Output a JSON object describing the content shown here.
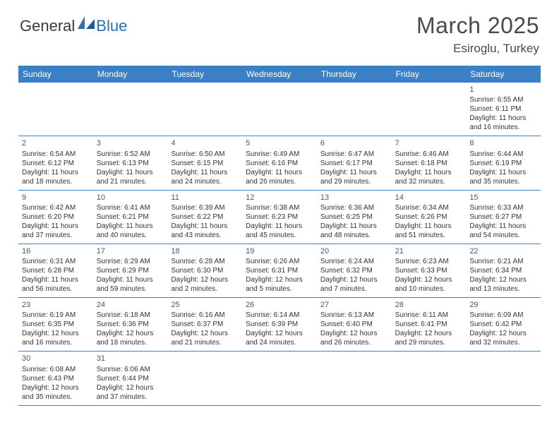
{
  "logo": {
    "general": "General",
    "blue": "Blue"
  },
  "title": "March 2025",
  "location": "Esiroglu, Turkey",
  "header_bg": "#3b7fc4",
  "day_names": [
    "Sunday",
    "Monday",
    "Tuesday",
    "Wednesday",
    "Thursday",
    "Friday",
    "Saturday"
  ],
  "weeks": [
    [
      null,
      null,
      null,
      null,
      null,
      null,
      {
        "n": "1",
        "sr": "Sunrise: 6:55 AM",
        "ss": "Sunset: 6:11 PM",
        "d1": "Daylight: 11 hours",
        "d2": "and 16 minutes."
      }
    ],
    [
      {
        "n": "2",
        "sr": "Sunrise: 6:54 AM",
        "ss": "Sunset: 6:12 PM",
        "d1": "Daylight: 11 hours",
        "d2": "and 18 minutes."
      },
      {
        "n": "3",
        "sr": "Sunrise: 6:52 AM",
        "ss": "Sunset: 6:13 PM",
        "d1": "Daylight: 11 hours",
        "d2": "and 21 minutes."
      },
      {
        "n": "4",
        "sr": "Sunrise: 6:50 AM",
        "ss": "Sunset: 6:15 PM",
        "d1": "Daylight: 11 hours",
        "d2": "and 24 minutes."
      },
      {
        "n": "5",
        "sr": "Sunrise: 6:49 AM",
        "ss": "Sunset: 6:16 PM",
        "d1": "Daylight: 11 hours",
        "d2": "and 26 minutes."
      },
      {
        "n": "6",
        "sr": "Sunrise: 6:47 AM",
        "ss": "Sunset: 6:17 PM",
        "d1": "Daylight: 11 hours",
        "d2": "and 29 minutes."
      },
      {
        "n": "7",
        "sr": "Sunrise: 6:46 AM",
        "ss": "Sunset: 6:18 PM",
        "d1": "Daylight: 11 hours",
        "d2": "and 32 minutes."
      },
      {
        "n": "8",
        "sr": "Sunrise: 6:44 AM",
        "ss": "Sunset: 6:19 PM",
        "d1": "Daylight: 11 hours",
        "d2": "and 35 minutes."
      }
    ],
    [
      {
        "n": "9",
        "sr": "Sunrise: 6:42 AM",
        "ss": "Sunset: 6:20 PM",
        "d1": "Daylight: 11 hours",
        "d2": "and 37 minutes."
      },
      {
        "n": "10",
        "sr": "Sunrise: 6:41 AM",
        "ss": "Sunset: 6:21 PM",
        "d1": "Daylight: 11 hours",
        "d2": "and 40 minutes."
      },
      {
        "n": "11",
        "sr": "Sunrise: 6:39 AM",
        "ss": "Sunset: 6:22 PM",
        "d1": "Daylight: 11 hours",
        "d2": "and 43 minutes."
      },
      {
        "n": "12",
        "sr": "Sunrise: 6:38 AM",
        "ss": "Sunset: 6:23 PM",
        "d1": "Daylight: 11 hours",
        "d2": "and 45 minutes."
      },
      {
        "n": "13",
        "sr": "Sunrise: 6:36 AM",
        "ss": "Sunset: 6:25 PM",
        "d1": "Daylight: 11 hours",
        "d2": "and 48 minutes."
      },
      {
        "n": "14",
        "sr": "Sunrise: 6:34 AM",
        "ss": "Sunset: 6:26 PM",
        "d1": "Daylight: 11 hours",
        "d2": "and 51 minutes."
      },
      {
        "n": "15",
        "sr": "Sunrise: 6:33 AM",
        "ss": "Sunset: 6:27 PM",
        "d1": "Daylight: 11 hours",
        "d2": "and 54 minutes."
      }
    ],
    [
      {
        "n": "16",
        "sr": "Sunrise: 6:31 AM",
        "ss": "Sunset: 6:28 PM",
        "d1": "Daylight: 11 hours",
        "d2": "and 56 minutes."
      },
      {
        "n": "17",
        "sr": "Sunrise: 6:29 AM",
        "ss": "Sunset: 6:29 PM",
        "d1": "Daylight: 11 hours",
        "d2": "and 59 minutes."
      },
      {
        "n": "18",
        "sr": "Sunrise: 6:28 AM",
        "ss": "Sunset: 6:30 PM",
        "d1": "Daylight: 12 hours",
        "d2": "and 2 minutes."
      },
      {
        "n": "19",
        "sr": "Sunrise: 6:26 AM",
        "ss": "Sunset: 6:31 PM",
        "d1": "Daylight: 12 hours",
        "d2": "and 5 minutes."
      },
      {
        "n": "20",
        "sr": "Sunrise: 6:24 AM",
        "ss": "Sunset: 6:32 PM",
        "d1": "Daylight: 12 hours",
        "d2": "and 7 minutes."
      },
      {
        "n": "21",
        "sr": "Sunrise: 6:23 AM",
        "ss": "Sunset: 6:33 PM",
        "d1": "Daylight: 12 hours",
        "d2": "and 10 minutes."
      },
      {
        "n": "22",
        "sr": "Sunrise: 6:21 AM",
        "ss": "Sunset: 6:34 PM",
        "d1": "Daylight: 12 hours",
        "d2": "and 13 minutes."
      }
    ],
    [
      {
        "n": "23",
        "sr": "Sunrise: 6:19 AM",
        "ss": "Sunset: 6:35 PM",
        "d1": "Daylight: 12 hours",
        "d2": "and 16 minutes."
      },
      {
        "n": "24",
        "sr": "Sunrise: 6:18 AM",
        "ss": "Sunset: 6:36 PM",
        "d1": "Daylight: 12 hours",
        "d2": "and 18 minutes."
      },
      {
        "n": "25",
        "sr": "Sunrise: 6:16 AM",
        "ss": "Sunset: 6:37 PM",
        "d1": "Daylight: 12 hours",
        "d2": "and 21 minutes."
      },
      {
        "n": "26",
        "sr": "Sunrise: 6:14 AM",
        "ss": "Sunset: 6:39 PM",
        "d1": "Daylight: 12 hours",
        "d2": "and 24 minutes."
      },
      {
        "n": "27",
        "sr": "Sunrise: 6:13 AM",
        "ss": "Sunset: 6:40 PM",
        "d1": "Daylight: 12 hours",
        "d2": "and 26 minutes."
      },
      {
        "n": "28",
        "sr": "Sunrise: 6:11 AM",
        "ss": "Sunset: 6:41 PM",
        "d1": "Daylight: 12 hours",
        "d2": "and 29 minutes."
      },
      {
        "n": "29",
        "sr": "Sunrise: 6:09 AM",
        "ss": "Sunset: 6:42 PM",
        "d1": "Daylight: 12 hours",
        "d2": "and 32 minutes."
      }
    ],
    [
      {
        "n": "30",
        "sr": "Sunrise: 6:08 AM",
        "ss": "Sunset: 6:43 PM",
        "d1": "Daylight: 12 hours",
        "d2": "and 35 minutes."
      },
      {
        "n": "31",
        "sr": "Sunrise: 6:06 AM",
        "ss": "Sunset: 6:44 PM",
        "d1": "Daylight: 12 hours",
        "d2": "and 37 minutes."
      },
      null,
      null,
      null,
      null,
      null
    ]
  ]
}
